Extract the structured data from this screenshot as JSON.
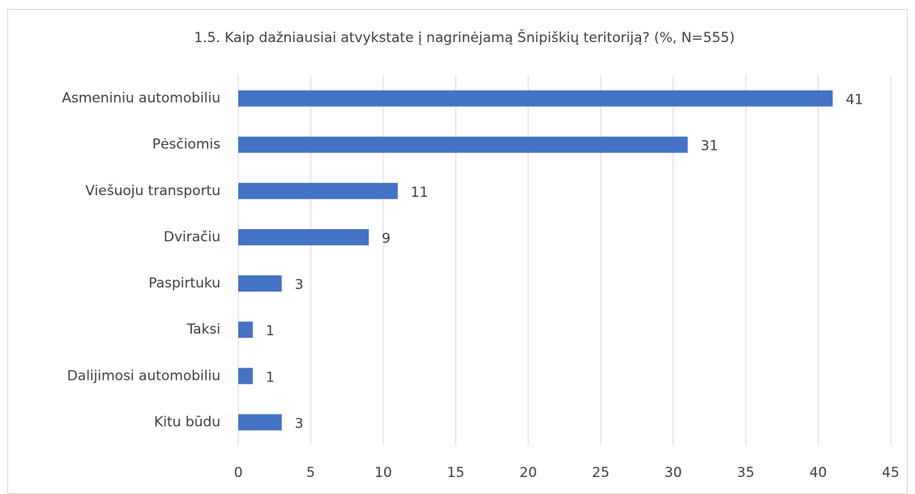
{
  "chart_data": {
    "type": "bar",
    "orientation": "horizontal",
    "title": "1.5. Kaip dažniausiai atvykstate į nagrinėjamą Šnipiškių teritoriją? (%, N=555)",
    "categories": [
      "Asmeniniu automobiliu",
      "Pėsčiomis",
      "Viešuoju transportu",
      "Dviračiu",
      "Paspirtuku",
      "Taksi",
      "Dalijimosi automobiliu",
      "Kitu būdu"
    ],
    "values": [
      41,
      31,
      11,
      9,
      3,
      1,
      1,
      3
    ],
    "color": "#4472c4",
    "xlim": [
      0,
      45
    ],
    "xticks": [
      0,
      5,
      10,
      15,
      20,
      25,
      30,
      35,
      40,
      45
    ],
    "grid": true
  }
}
